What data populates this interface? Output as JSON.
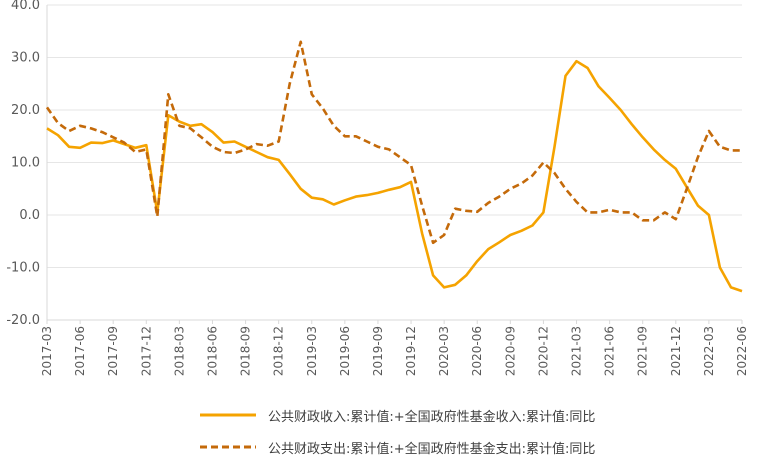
{
  "chart_data": {
    "type": "line",
    "title": "",
    "xlabel": "",
    "ylabel": "",
    "ylim": [
      -20,
      40
    ],
    "yticks": [
      "-20.0",
      "-10.0",
      "0.0",
      "10.0",
      "20.0",
      "30.0",
      "40.0"
    ],
    "xtick_labels": [
      "2017-03",
      "2017-06",
      "2017-09",
      "2017-12",
      "2018-03",
      "2018-06",
      "2018-09",
      "2018-12",
      "2019-03",
      "2019-06",
      "2019-09",
      "2019-12",
      "2020-03",
      "2020-06",
      "2020-09",
      "2020-12",
      "2021-03",
      "2021-06",
      "2021-09",
      "2021-12",
      "2022-03",
      "2022-06"
    ],
    "grid": "horizontal",
    "legend_position": "bottom",
    "colors": {
      "series0": "#F5A300",
      "series1": "#C46A0A",
      "axis": "#D9D9D9",
      "grid": "#E6E6E6"
    },
    "series": [
      {
        "name": "公共财政收入:累计值:+全国政府性基金收入:累计值:同比",
        "style": "solid",
        "points": [
          [
            "2017-03",
            16.5
          ],
          [
            "2017-04",
            15.2
          ],
          [
            "2017-05",
            13.0
          ],
          [
            "2017-06",
            12.8
          ],
          [
            "2017-07",
            13.8
          ],
          [
            "2017-08",
            13.7
          ],
          [
            "2017-09",
            14.2
          ],
          [
            "2017-10",
            13.5
          ],
          [
            "2017-11",
            12.8
          ],
          [
            "2017-12",
            13.3
          ],
          [
            "2018-01",
            0.5
          ],
          [
            "2018-02",
            19.0
          ],
          [
            "2018-03",
            17.8
          ],
          [
            "2018-04",
            17.0
          ],
          [
            "2018-05",
            17.3
          ],
          [
            "2018-06",
            15.8
          ],
          [
            "2018-07",
            13.8
          ],
          [
            "2018-08",
            14.0
          ],
          [
            "2018-09",
            13.0
          ],
          [
            "2018-10",
            12.0
          ],
          [
            "2018-11",
            11.0
          ],
          [
            "2018-12",
            10.5
          ],
          [
            "2019-01",
            7.8
          ],
          [
            "2019-02",
            5.0
          ],
          [
            "2019-03",
            3.3
          ],
          [
            "2019-04",
            3.0
          ],
          [
            "2019-05",
            2.0
          ],
          [
            "2019-06",
            2.8
          ],
          [
            "2019-07",
            3.5
          ],
          [
            "2019-08",
            3.8
          ],
          [
            "2019-09",
            4.2
          ],
          [
            "2019-10",
            4.8
          ],
          [
            "2019-11",
            5.3
          ],
          [
            "2019-12",
            6.3
          ],
          [
            "2020-01",
            -3.5
          ],
          [
            "2020-02",
            -11.5
          ],
          [
            "2020-03",
            -13.8
          ],
          [
            "2020-04",
            -13.3
          ],
          [
            "2020-05",
            -11.5
          ],
          [
            "2020-06",
            -8.8
          ],
          [
            "2020-07",
            -6.5
          ],
          [
            "2020-08",
            -5.2
          ],
          [
            "2020-09",
            -3.8
          ],
          [
            "2020-10",
            -3.0
          ],
          [
            "2020-11",
            -2.0
          ],
          [
            "2020-12",
            0.5
          ],
          [
            "2021-01",
            13.0
          ],
          [
            "2021-02",
            26.5
          ],
          [
            "2021-03",
            29.3
          ],
          [
            "2021-04",
            28.0
          ],
          [
            "2021-05",
            24.5
          ],
          [
            "2021-06",
            22.3
          ],
          [
            "2021-07",
            20.0
          ],
          [
            "2021-08",
            17.3
          ],
          [
            "2021-09",
            14.8
          ],
          [
            "2021-10",
            12.5
          ],
          [
            "2021-11",
            10.5
          ],
          [
            "2021-12",
            8.8
          ],
          [
            "2022-01",
            5.3
          ],
          [
            "2022-02",
            1.8
          ],
          [
            "2022-03",
            0.0
          ],
          [
            "2022-04",
            -10.0
          ],
          [
            "2022-05",
            -13.8
          ],
          [
            "2022-06",
            -14.5
          ]
        ]
      },
      {
        "name": "公共财政支出:累计值:+全国政府性基金支出:累计值:同比",
        "style": "dashed",
        "points": [
          [
            "2017-03",
            20.5
          ],
          [
            "2017-04",
            17.5
          ],
          [
            "2017-05",
            16.0
          ],
          [
            "2017-06",
            17.0
          ],
          [
            "2017-07",
            16.5
          ],
          [
            "2017-08",
            15.8
          ],
          [
            "2017-09",
            14.8
          ],
          [
            "2017-10",
            13.8
          ],
          [
            "2017-11",
            12.0
          ],
          [
            "2017-12",
            12.5
          ],
          [
            "2018-01",
            -0.3
          ],
          [
            "2018-02",
            23.0
          ],
          [
            "2018-03",
            17.0
          ],
          [
            "2018-04",
            16.5
          ],
          [
            "2018-05",
            14.8
          ],
          [
            "2018-06",
            13.0
          ],
          [
            "2018-07",
            12.0
          ],
          [
            "2018-08",
            11.8
          ],
          [
            "2018-09",
            12.5
          ],
          [
            "2018-10",
            13.5
          ],
          [
            "2018-11",
            13.2
          ],
          [
            "2018-12",
            14.0
          ],
          [
            "2019-01",
            25.0
          ],
          [
            "2019-02",
            33.0
          ],
          [
            "2019-03",
            23.0
          ],
          [
            "2019-04",
            20.3
          ],
          [
            "2019-05",
            17.0
          ],
          [
            "2019-06",
            15.0
          ],
          [
            "2019-07",
            15.0
          ],
          [
            "2019-08",
            14.0
          ],
          [
            "2019-09",
            13.0
          ],
          [
            "2019-10",
            12.5
          ],
          [
            "2019-11",
            11.0
          ],
          [
            "2019-12",
            9.5
          ],
          [
            "2020-01",
            1.8
          ],
          [
            "2020-02",
            -5.3
          ],
          [
            "2020-03",
            -3.8
          ],
          [
            "2020-04",
            1.2
          ],
          [
            "2020-05",
            0.8
          ],
          [
            "2020-06",
            0.6
          ],
          [
            "2020-07",
            2.3
          ],
          [
            "2020-08",
            3.5
          ],
          [
            "2020-09",
            5.0
          ],
          [
            "2020-10",
            6.0
          ],
          [
            "2020-11",
            7.5
          ],
          [
            "2020-12",
            10.0
          ],
          [
            "2021-01",
            8.0
          ],
          [
            "2021-02",
            5.0
          ],
          [
            "2021-03",
            2.5
          ],
          [
            "2021-04",
            0.5
          ],
          [
            "2021-05",
            0.5
          ],
          [
            "2021-06",
            1.0
          ],
          [
            "2021-07",
            0.5
          ],
          [
            "2021-08",
            0.5
          ],
          [
            "2021-09",
            -1.0
          ],
          [
            "2021-10",
            -1.0
          ],
          [
            "2021-11",
            0.5
          ],
          [
            "2021-12",
            -0.8
          ],
          [
            "2022-01",
            5.0
          ],
          [
            "2022-02",
            11.0
          ],
          [
            "2022-03",
            16.0
          ],
          [
            "2022-04",
            13.0
          ],
          [
            "2022-05",
            12.3
          ],
          [
            "2022-06",
            12.3
          ]
        ]
      }
    ]
  }
}
